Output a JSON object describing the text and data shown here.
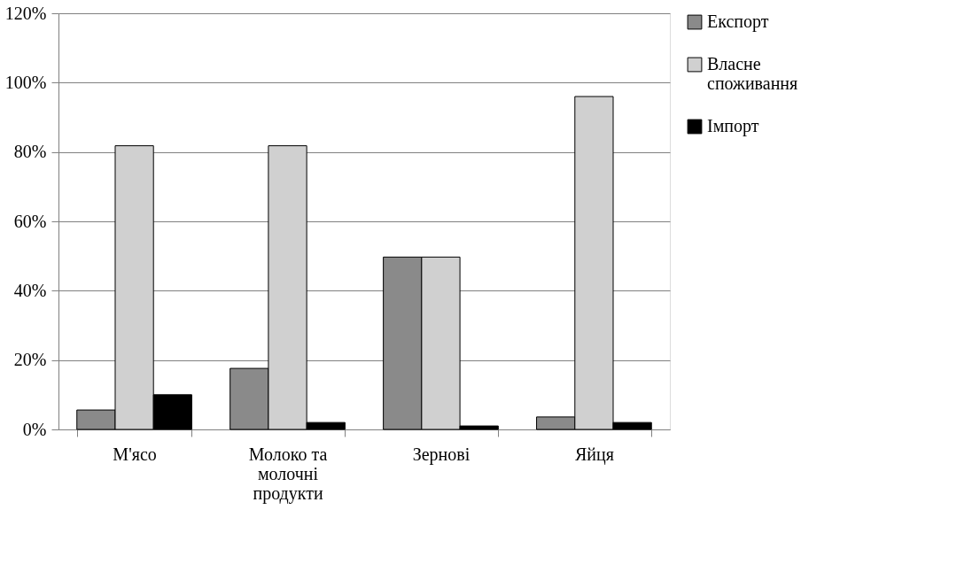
{
  "chart_data": {
    "type": "bar",
    "categories": [
      "М'ясо",
      "Молоко та молочні продукти",
      "Зернові",
      "Яйця"
    ],
    "series": [
      {
        "name": "Експорт",
        "color": "#8a8a8a",
        "values": [
          5.6,
          17.6,
          49.7,
          3.6
        ]
      },
      {
        "name": "Власне споживання",
        "color": "#d0d0d0",
        "values": [
          81.8,
          81.8,
          49.7,
          96
        ]
      },
      {
        "name": "Імпорт",
        "color": "#000000",
        "values": [
          10,
          2,
          1,
          2
        ]
      }
    ],
    "ylim": [
      0,
      120
    ],
    "yticks": [
      {
        "value": 0,
        "label": "0%"
      },
      {
        "value": 20,
        "label": "20%"
      },
      {
        "value": 40,
        "label": "40%"
      },
      {
        "value": 60,
        "label": "60%"
      },
      {
        "value": 80,
        "label": "80%"
      },
      {
        "value": 100,
        "label": "100%"
      },
      {
        "value": 120,
        "label": "120%"
      }
    ],
    "grid": "y",
    "legend": "right"
  }
}
